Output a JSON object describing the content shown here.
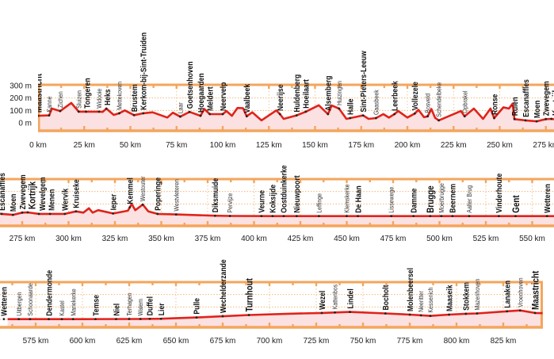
{
  "chart_data": {
    "type": "area",
    "title": "",
    "xlabel": "",
    "ylabel": "",
    "y_unit": "m",
    "ylim": [
      0,
      300
    ],
    "y_ticks": [
      {
        "value": 300,
        "label": "300 m"
      },
      {
        "value": 200,
        "label": "200 m"
      },
      {
        "value": 100,
        "label": "100 m"
      },
      {
        "value": 0,
        "label": "0 m"
      }
    ],
    "rows": [
      {
        "xlim": [
          0,
          279
        ],
        "x_ticks": [
          0,
          25,
          50,
          75,
          100,
          125,
          150,
          175,
          200,
          225,
          250,
          275
        ],
        "x_tick_labels": [
          "0 km",
          "25 km",
          "50 km",
          "75 km",
          "100 km",
          "125 km",
          "150 km",
          "175 km",
          "200 km",
          "225 km",
          "250 km",
          "275 km"
        ]
      },
      {
        "xlim": [
          263,
          562
        ],
        "x_ticks": [
          275,
          300,
          325,
          350,
          375,
          400,
          425,
          450,
          475,
          500,
          525,
          550
        ],
        "x_tick_labels": [
          "275 km",
          "300 km",
          "325 km",
          "350 km",
          "375 km",
          "400 km",
          "425 km",
          "450 km",
          "475 km",
          "500 km",
          "525 km",
          "550 km"
        ]
      },
      {
        "xlim": [
          556,
          846
        ],
        "x_ticks": [
          575,
          600,
          625,
          650,
          675,
          700,
          725,
          750,
          775,
          800,
          825
        ],
        "x_tick_labels": [
          "575 km",
          "600 km",
          "625 km",
          "650 km",
          "675 km",
          "700 km",
          "725 km",
          "750 km",
          "775 km",
          "800 km",
          "825 km"
        ]
      }
    ],
    "profile_km_m": [
      [
        0,
        57
      ],
      [
        6,
        60
      ],
      [
        7.5,
        115
      ],
      [
        12,
        95
      ],
      [
        18,
        160
      ],
      [
        22,
        90
      ],
      [
        26,
        90
      ],
      [
        33,
        90
      ],
      [
        35,
        88
      ],
      [
        37,
        115
      ],
      [
        41,
        64
      ],
      [
        44,
        77
      ],
      [
        47,
        100
      ],
      [
        52,
        62
      ],
      [
        57,
        77
      ],
      [
        62,
        85
      ],
      [
        70,
        43
      ],
      [
        73,
        82
      ],
      [
        77,
        50
      ],
      [
        82,
        88
      ],
      [
        88,
        57
      ],
      [
        90,
        112
      ],
      [
        93,
        70
      ],
      [
        100,
        70
      ],
      [
        102,
        95
      ],
      [
        105,
        57
      ],
      [
        108,
        120
      ],
      [
        111,
        118
      ],
      [
        113,
        53
      ],
      [
        116,
        85
      ],
      [
        121,
        20
      ],
      [
        129,
        100
      ],
      [
        131,
        70
      ],
      [
        133,
        32
      ],
      [
        140,
        60
      ],
      [
        145,
        90
      ],
      [
        152,
        142
      ],
      [
        157,
        70
      ],
      [
        159,
        140
      ],
      [
        163,
        115
      ],
      [
        167,
        32
      ],
      [
        176,
        60
      ],
      [
        179,
        32
      ],
      [
        183,
        38
      ],
      [
        187,
        70
      ],
      [
        190,
        42
      ],
      [
        193,
        70
      ],
      [
        195,
        95
      ],
      [
        200,
        43
      ],
      [
        204,
        75
      ],
      [
        206,
        105
      ],
      [
        209,
        45
      ],
      [
        211,
        53
      ],
      [
        213,
        112
      ],
      [
        215,
        40
      ],
      [
        217,
        20
      ],
      [
        229,
        95
      ],
      [
        231,
        53
      ],
      [
        236,
        115
      ],
      [
        241,
        32
      ],
      [
        245,
        115
      ],
      [
        247,
        38
      ],
      [
        252,
        125
      ],
      [
        255,
        115
      ],
      [
        257,
        155
      ],
      [
        258,
        30
      ],
      [
        264,
        20
      ],
      [
        270,
        12
      ],
      [
        275,
        30
      ],
      [
        278,
        32
      ],
      [
        284,
        20
      ],
      [
        290,
        20
      ],
      [
        298,
        20
      ],
      [
        304,
        40
      ],
      [
        308,
        30
      ],
      [
        311,
        65
      ],
      [
        313,
        30
      ],
      [
        316,
        50
      ],
      [
        324,
        23
      ],
      [
        332,
        45
      ],
      [
        334,
        100
      ],
      [
        336,
        50
      ],
      [
        340,
        95
      ],
      [
        343,
        40
      ],
      [
        348,
        20
      ],
      [
        358,
        15
      ],
      [
        379,
        5
      ],
      [
        387,
        3
      ],
      [
        410,
        2
      ],
      [
        450,
        2
      ],
      [
        500,
        2
      ],
      [
        541,
        2
      ],
      [
        560,
        2
      ],
      [
        566,
        2
      ],
      [
        600,
        2
      ],
      [
        630,
        3
      ],
      [
        642,
        5
      ],
      [
        661,
        15
      ],
      [
        675,
        25
      ],
      [
        689,
        35
      ],
      [
        710,
        45
      ],
      [
        728,
        52
      ],
      [
        743,
        60
      ],
      [
        762,
        48
      ],
      [
        775,
        38
      ],
      [
        786,
        28
      ],
      [
        796,
        38
      ],
      [
        805,
        45
      ],
      [
        811,
        48
      ],
      [
        827,
        65
      ],
      [
        834,
        72
      ],
      [
        842,
        52
      ],
      [
        846,
        50
      ]
    ],
    "towns": [
      {
        "name": "Maastricht",
        "km": 0,
        "style": "major"
      },
      {
        "name": "Kanne",
        "km": 6,
        "style": "minor"
      },
      {
        "name": "Zichen",
        "km": 12,
        "style": "minor"
      },
      {
        "name": "Sluizen",
        "km": 22,
        "style": "minor"
      },
      {
        "name": "Tongeren",
        "km": 26,
        "style": "normal"
      },
      {
        "name": "Widooie",
        "km": 33,
        "style": "minor"
      },
      {
        "name": "Heks",
        "km": 37,
        "style": "normal"
      },
      {
        "name": "Mettekoven",
        "km": 44,
        "style": "minor"
      },
      {
        "name": "Brustem",
        "km": 52,
        "style": "normal"
      },
      {
        "name": "Kerkom-bij-Sint-Truiden",
        "km": 57,
        "style": "normal"
      },
      {
        "name": "Laar",
        "km": 77,
        "style": "minor"
      },
      {
        "name": "Goetsenhoven",
        "km": 82,
        "style": "normal"
      },
      {
        "name": "Hoegaarden",
        "km": 88,
        "style": "normal"
      },
      {
        "name": "Meldert",
        "km": 93,
        "style": "normal"
      },
      {
        "name": "Neervelp",
        "km": 100,
        "style": "normal"
      },
      {
        "name": "Vaalbeek",
        "km": 113,
        "style": "normal"
      },
      {
        "name": "Neerijse",
        "km": 131,
        "style": "normal"
      },
      {
        "name": "Huldenberg",
        "km": 140,
        "style": "normal"
      },
      {
        "name": "Hoeilaart",
        "km": 145,
        "style": "normal"
      },
      {
        "name": "Alsemberg",
        "km": 157,
        "style": "normal"
      },
      {
        "name": "Huizingen",
        "km": 163,
        "style": "minor"
      },
      {
        "name": "Halle",
        "km": 169,
        "style": "normal"
      },
      {
        "name": "Sint-Pieters-Leeuw",
        "km": 176,
        "style": "normal"
      },
      {
        "name": "Gaasbeek",
        "km": 183,
        "style": "minor"
      },
      {
        "name": "Leerbeek",
        "km": 193,
        "style": "normal"
      },
      {
        "name": "Vollezele",
        "km": 204,
        "style": "normal"
      },
      {
        "name": "Bosveld",
        "km": 211,
        "style": "minor"
      },
      {
        "name": "Schendelbeke",
        "km": 217,
        "style": "minor"
      },
      {
        "name": "Opbrakel",
        "km": 231,
        "style": "minor"
      },
      {
        "name": "Ronse",
        "km": 247,
        "style": "normal"
      },
      {
        "name": "Ruien",
        "km": 258,
        "style": "normal"
      },
      {
        "name": "Escanaffles",
        "km": 264,
        "style": "normal"
      },
      {
        "name": "Moen",
        "km": 270,
        "style": "normal"
      },
      {
        "name": "Zwevegem",
        "km": 275,
        "style": "normal"
      },
      {
        "name": "Kortrijk",
        "km": 278,
        "style": "major"
      },
      {
        "name": "Wevelgem",
        "km": 284,
        "style": "normal"
      },
      {
        "name": "Menen",
        "km": 290,
        "style": "normal"
      },
      {
        "name": "Wervik",
        "km": 298,
        "style": "normal"
      },
      {
        "name": "Kruiseke",
        "km": 304,
        "style": "normal"
      },
      {
        "name": "Ieper",
        "km": 324,
        "style": "normal"
      },
      {
        "name": "Kemmel",
        "km": 333,
        "style": "normal"
      },
      {
        "name": "Westouter",
        "km": 340,
        "style": "minor"
      },
      {
        "name": "Poperinge",
        "km": 348,
        "style": "normal"
      },
      {
        "name": "Westvleteren",
        "km": 358,
        "style": "minor"
      },
      {
        "name": "Diksmuide",
        "km": 379,
        "style": "normal"
      },
      {
        "name": "Pervijze",
        "km": 387,
        "style": "minor"
      },
      {
        "name": "Veurne",
        "km": 404,
        "style": "normal"
      },
      {
        "name": "Koksijde",
        "km": 410,
        "style": "normal"
      },
      {
        "name": "Oostduinkerke",
        "km": 416,
        "style": "normal"
      },
      {
        "name": "Nieuwpoort",
        "km": 423,
        "style": "normal"
      },
      {
        "name": "Leffinge",
        "km": 435,
        "style": "minor"
      },
      {
        "name": "Klemskerke",
        "km": 450,
        "style": "minor"
      },
      {
        "name": "De Haan",
        "km": 456,
        "style": "normal"
      },
      {
        "name": "Lissewege",
        "km": 474,
        "style": "minor"
      },
      {
        "name": "Damme",
        "km": 486,
        "style": "normal"
      },
      {
        "name": "Brugge",
        "km": 495,
        "style": "major"
      },
      {
        "name": "Moerbrugge",
        "km": 501,
        "style": "minor"
      },
      {
        "name": "Beernem",
        "km": 507,
        "style": "normal"
      },
      {
        "name": "Aalter Brug",
        "km": 516,
        "style": "minor"
      },
      {
        "name": "Vinderhoute",
        "km": 532,
        "style": "normal"
      },
      {
        "name": "Gent",
        "km": 541,
        "style": "major"
      },
      {
        "name": "Wetteren",
        "km": 558,
        "style": "normal"
      },
      {
        "name": "Uitbergen",
        "km": 566,
        "style": "minor"
      },
      {
        "name": "Schoonaarde",
        "km": 572,
        "style": "minor"
      },
      {
        "name": "Dendermonde",
        "km": 582,
        "style": "normal"
      },
      {
        "name": "Kastel",
        "km": 589,
        "style": "minor"
      },
      {
        "name": "Mariekerke",
        "km": 595,
        "style": "minor"
      },
      {
        "name": "Temse",
        "km": 607,
        "style": "normal"
      },
      {
        "name": "Niel",
        "km": 618,
        "style": "normal"
      },
      {
        "name": "Terhagen",
        "km": 625,
        "style": "minor"
      },
      {
        "name": "Walem",
        "km": 631,
        "style": "minor"
      },
      {
        "name": "Duffel",
        "km": 636,
        "style": "normal"
      },
      {
        "name": "Lier",
        "km": 642,
        "style": "normal"
      },
      {
        "name": "Pulle",
        "km": 661,
        "style": "normal"
      },
      {
        "name": "Wechelderzande",
        "km": 675,
        "style": "normal"
      },
      {
        "name": "Turnhout",
        "km": 689,
        "style": "major"
      },
      {
        "name": "Wezel",
        "km": 728,
        "style": "normal"
      },
      {
        "name": "Kattenbos",
        "km": 735,
        "style": "minor"
      },
      {
        "name": "Lindel",
        "km": 743,
        "style": "normal"
      },
      {
        "name": "Bocholt",
        "km": 762,
        "style": "normal"
      },
      {
        "name": "Molenbeersel",
        "km": 775,
        "style": "normal"
      },
      {
        "name": "Neeritter",
        "km": 781,
        "style": "minor"
      },
      {
        "name": "Kessenich",
        "km": 786,
        "style": "minor"
      },
      {
        "name": "Maaseik",
        "km": 796,
        "style": "normal"
      },
      {
        "name": "Stokkem",
        "km": 805,
        "style": "normal"
      },
      {
        "name": "Mazenhoven",
        "km": 811,
        "style": "minor"
      },
      {
        "name": "Lanaken",
        "km": 827,
        "style": "normal"
      },
      {
        "name": "Vroenhoven",
        "km": 834,
        "style": "minor"
      },
      {
        "name": "Maastricht",
        "km": 842,
        "style": "major"
      }
    ],
    "grid": true,
    "colors": {
      "frame": "#f4a55c",
      "line": "#e0231b",
      "fill": "#fbe1e1",
      "grid": "#f4b87a",
      "dot": "#222222"
    }
  }
}
